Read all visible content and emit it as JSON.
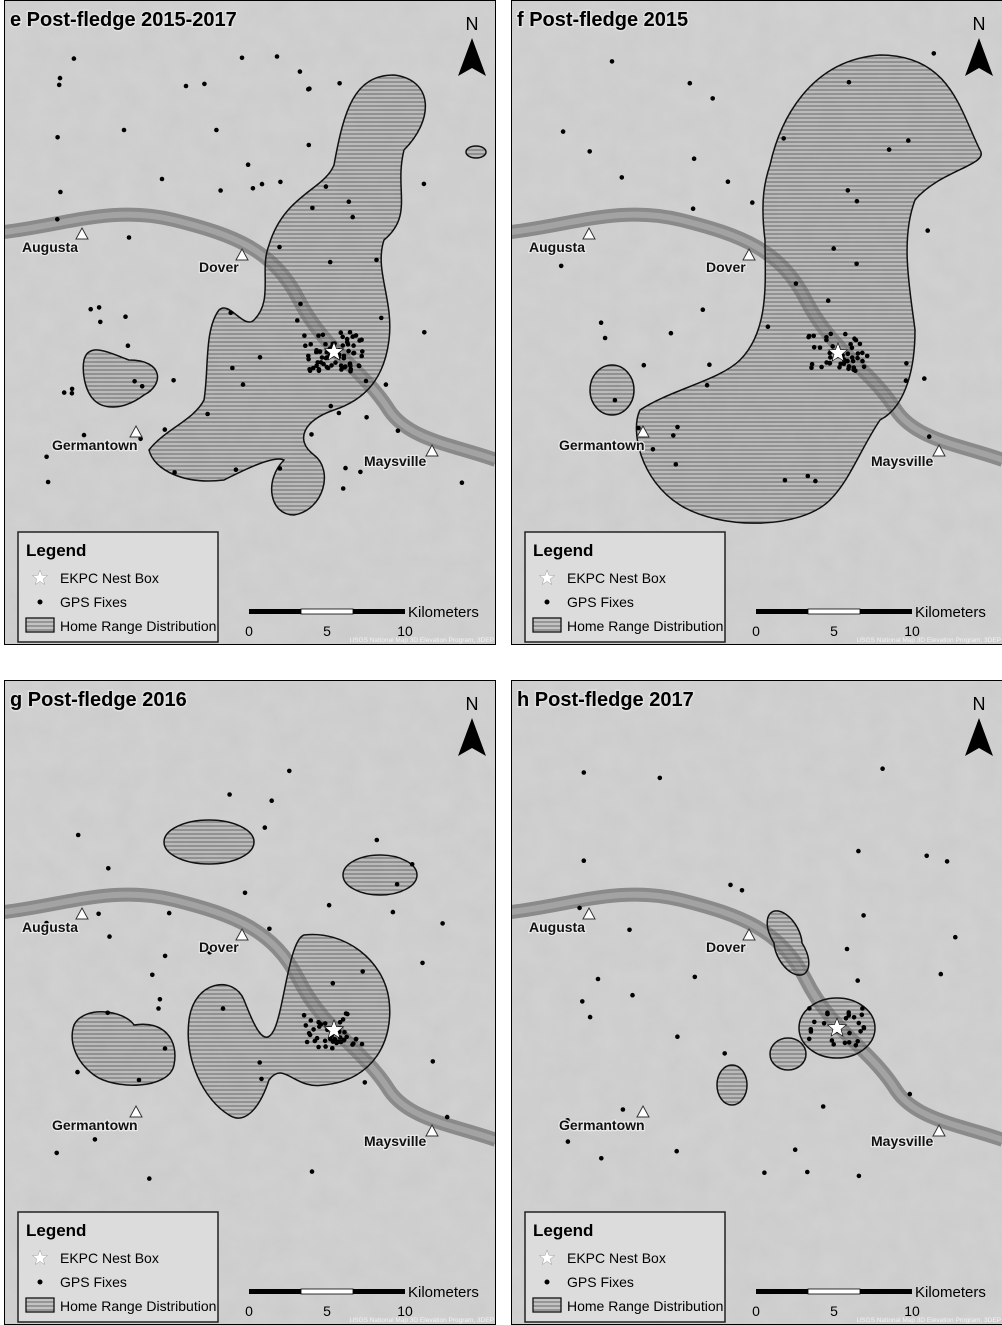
{
  "panels": [
    {
      "title": "e Post-fledge 2015-2017"
    },
    {
      "title": "f Post-fledge 2015"
    },
    {
      "title": "g Post-fledge 2016"
    },
    {
      "title": "h Post-fledge 2017"
    }
  ],
  "north": "N",
  "towns": [
    "Augusta",
    "Dover",
    "Germantown",
    "Maysville"
  ],
  "legend": {
    "title": "Legend",
    "items": [
      "EKPC Nest Box",
      "GPS Fixes",
      "Home Range Distribution"
    ]
  },
  "scale": {
    "unit": "Kilometers",
    "ticks": [
      0,
      5,
      10
    ]
  },
  "credit": "USGS National Map 3D Elevation Program, 3DEP"
}
